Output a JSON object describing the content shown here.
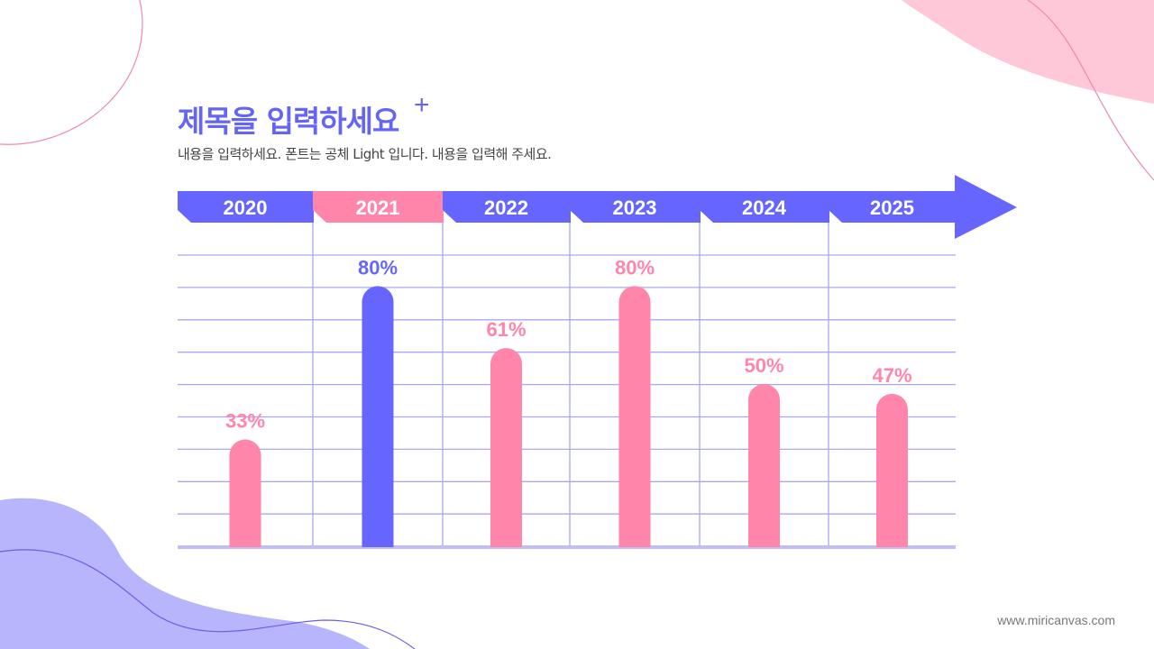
{
  "title": "제목을 입력하세요",
  "title_decoration": "+",
  "subtitle": "내용을 입력하세요. 폰트는 공체 Light 입니다. 내용을 입력해 주세요.",
  "footer": "www.miricanvas.com",
  "colors": {
    "primary": "#6666ff",
    "accent": "#ff85aa",
    "grid": "#a9a6f2",
    "baseline": "#c0bdf7",
    "text": "#444444"
  },
  "chart_data": {
    "type": "bar",
    "categories": [
      "2020",
      "2021",
      "2022",
      "2023",
      "2024",
      "2025"
    ],
    "values": [
      33,
      80,
      61,
      80,
      50,
      47
    ],
    "data_labels": [
      "33%",
      "80%",
      "61%",
      "80%",
      "50%",
      "47%"
    ],
    "highlight_index": 1,
    "ylim": [
      0,
      100
    ],
    "grid": true,
    "title": "",
    "xlabel": "",
    "ylabel": ""
  }
}
